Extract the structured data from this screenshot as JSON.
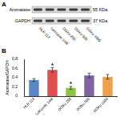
{
  "panels": [
    "A",
    "B"
  ],
  "blot": {
    "rows": [
      {
        "label": "Aromatase",
        "size": "55 KDa"
      },
      {
        "label": "GAPDH",
        "size": "37 KDa"
      }
    ],
    "lanes": [
      "HLR 113",
      "Letrozole 1nM",
      "DOXo 250",
      "DOXo 500",
      "DOXo 1000"
    ]
  },
  "chart_data": {
    "type": "bar",
    "y_label": "Aromatase/GAPDH",
    "categories": [
      "HLR 113",
      "Letrozole 1nM",
      "DOXo 250",
      "DOXo 500",
      "DOXo 1000"
    ],
    "values": [
      0.35,
      0.57,
      0.18,
      0.45,
      0.42
    ],
    "errors": [
      0.03,
      0.05,
      0.03,
      0.05,
      0.05
    ],
    "significance": [
      null,
      "*",
      "*",
      null,
      null
    ],
    "colors": [
      "#5a86c8",
      "#e0504d",
      "#8cc63f",
      "#8064a2",
      "#f0a04b"
    ],
    "ylim": [
      0,
      0.8
    ],
    "yticks": [
      0,
      0.2,
      0.4,
      0.6,
      0.8
    ],
    "grid": false
  }
}
